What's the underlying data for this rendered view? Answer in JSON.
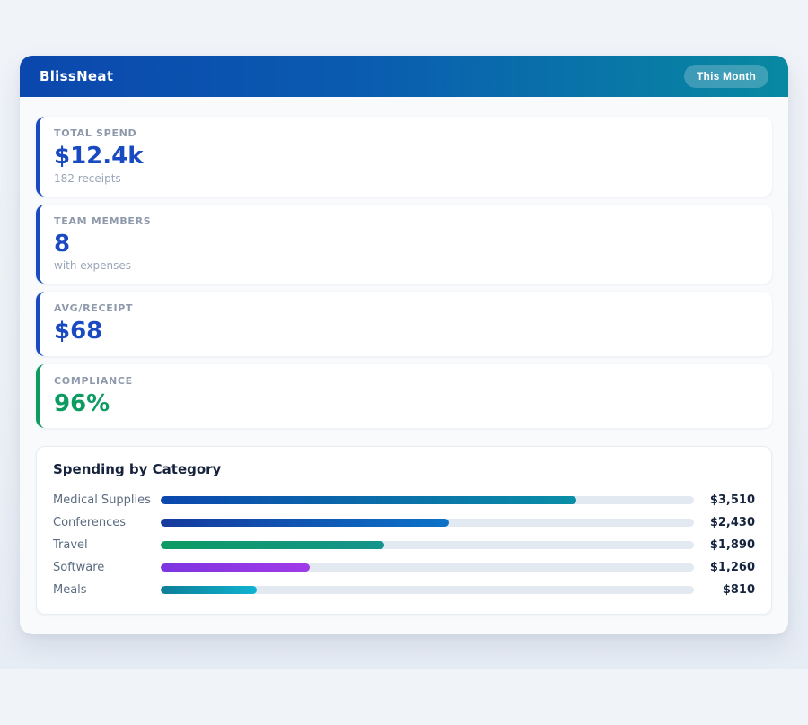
{
  "app": {
    "title": "BlissNeat",
    "period_badge": "This Month"
  },
  "stats": [
    {
      "label": "TOTAL SPEND",
      "value": "$12.4k",
      "sub": "182 receipts",
      "accent": "#1a4ac2"
    },
    {
      "label": "TEAM MEMBERS",
      "value": "8",
      "sub": "with expenses",
      "accent": "#1a4ac2"
    },
    {
      "label": "AVG/RECEIPT",
      "value": "$68",
      "sub": "",
      "accent": "#1a4ac2"
    },
    {
      "label": "COMPLIANCE",
      "value": "96%",
      "sub": "",
      "accent": "#0d9b62"
    }
  ],
  "spending": {
    "title": "Spending by Category",
    "scale_max": 4500,
    "rows": [
      {
        "label": "Medical Supplies",
        "amount": 3510,
        "value": "$3,510",
        "bar_from": "#0b47ad",
        "bar_to": "#0a8fa6"
      },
      {
        "label": "Conferences",
        "amount": 2430,
        "value": "$2,430",
        "bar_from": "#163a9e",
        "bar_to": "#0b72c8"
      },
      {
        "label": "Travel",
        "amount": 1890,
        "value": "$1,890",
        "bar_from": "#0d9a62",
        "bar_to": "#15948c"
      },
      {
        "label": "Software",
        "amount": 1260,
        "value": "$1,260",
        "bar_from": "#7c35e0",
        "bar_to": "#a13ae8"
      },
      {
        "label": "Meals",
        "amount": 810,
        "value": "$810",
        "bar_from": "#0e7e97",
        "bar_to": "#0fb3d1"
      }
    ]
  },
  "chart_data": {
    "type": "bar",
    "orientation": "horizontal",
    "title": "Spending by Category",
    "categories": [
      "Medical Supplies",
      "Conferences",
      "Travel",
      "Software",
      "Meals"
    ],
    "values": [
      3510,
      2430,
      1890,
      1260,
      810
    ],
    "value_labels": [
      "$3,510",
      "$2,430",
      "$1,890",
      "$1,260",
      "$810"
    ],
    "xlim": [
      0,
      4500
    ],
    "grid": false,
    "legend": false
  },
  "colors": {
    "header_gradient_from": "#0b47ad",
    "header_gradient_to": "#0889a1",
    "stat_accent_blue": "#1a4ac2",
    "stat_accent_green": "#0d9b62",
    "bar_track": "#e3e9f1",
    "panel_bg": "#f8fafc",
    "page_bg": "#eef1f7"
  }
}
